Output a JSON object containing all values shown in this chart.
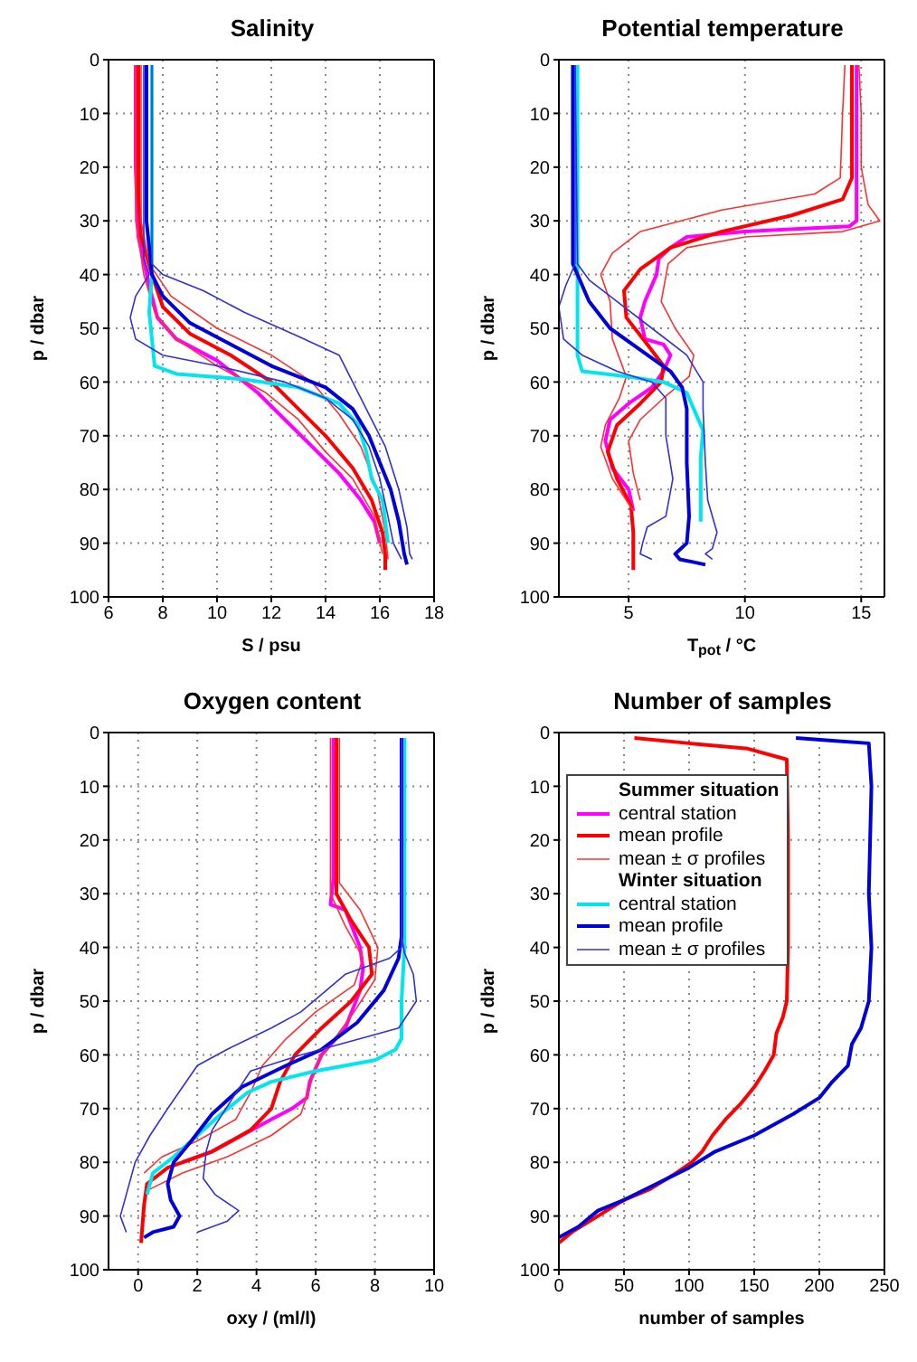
{
  "chart_data": [
    {
      "type": "line",
      "title": "Salinity",
      "xlabel": "S / psu",
      "ylabel": "p / dbar",
      "xlim": [
        6,
        18
      ],
      "xticks": [
        6,
        8,
        10,
        12,
        14,
        16,
        18
      ],
      "ylim": [
        100,
        0
      ],
      "yticks": [
        0,
        10,
        20,
        30,
        40,
        50,
        60,
        70,
        80,
        90,
        100
      ],
      "grid": true,
      "legend": "bottom right",
      "annotations": [
        "Summer situation",
        "Winter situation"
      ],
      "series": [
        {
          "name": "central station",
          "color": "#ff00ff",
          "x": [
            7.0,
            7.0,
            7.1,
            7.5,
            7.8,
            8.5,
            10,
            11.5,
            12.5,
            13.5,
            14.5,
            15.3,
            15.8,
            16.0
          ],
          "values": [
            1,
            20,
            33,
            42,
            48,
            52,
            56,
            62,
            67,
            72,
            77,
            82,
            86,
            90
          ]
        },
        {
          "name": "mean profile",
          "color": "#ff0000",
          "x": [
            7.1,
            7.1,
            7.2,
            7.6,
            8,
            9,
            10.5,
            12,
            13,
            14,
            15,
            15.7,
            16.1,
            16.2,
            16.2
          ],
          "values": [
            1,
            25,
            33,
            40,
            46,
            51,
            55,
            60,
            65,
            70,
            76,
            82,
            88,
            92,
            95
          ]
        },
        {
          "name": "mean ± σ profiles",
          "color": "#ff3030",
          "x": [
            7.2,
            7.2,
            7.5,
            8.3,
            10,
            12,
            13.5,
            14.5,
            15.3,
            15.9,
            16.2,
            16.3
          ],
          "values": [
            1,
            30,
            38,
            44,
            50,
            55,
            60,
            66,
            72,
            80,
            88,
            93
          ]
        },
        {
          "color": "#ff3030",
          "x": [
            7.0,
            7.0,
            7.3,
            7.7,
            8.5,
            10,
            11.8,
            13,
            14,
            15,
            15.8,
            16.1
          ],
          "values": [
            1,
            30,
            40,
            47,
            52,
            57,
            62,
            67,
            73,
            78,
            85,
            92
          ]
        },
        {
          "name": "central station",
          "color": "#00e5ee",
          "x": [
            7.6,
            7.6,
            7.5,
            7.7,
            8.5,
            11,
            13,
            14.5,
            15.2,
            15.5,
            15.7,
            16.1,
            16.2,
            16.3
          ],
          "values": [
            1,
            40,
            47,
            57,
            58.5,
            59.5,
            61,
            64,
            68,
            73,
            78,
            82,
            86,
            90
          ]
        },
        {
          "name": "mean profile",
          "color": "#0000dd",
          "x": [
            7.4,
            7.4,
            7.6,
            8,
            9,
            10.5,
            12,
            14,
            15,
            15.6,
            16,
            16.4,
            16.7,
            16.9,
            17
          ],
          "values": [
            1,
            30,
            40,
            44,
            49,
            53,
            57,
            61,
            65,
            70,
            75,
            80,
            86,
            92,
            94
          ]
        },
        {
          "name": "mean ± σ profiles",
          "color": "#3030dd",
          "x": [
            7.6,
            7.6,
            8,
            9.5,
            11,
            13,
            14.5,
            15,
            15.6,
            16.2,
            16.7,
            17,
            17.1,
            17.2
          ],
          "values": [
            1,
            38,
            40,
            43,
            47,
            51.5,
            55,
            60,
            66,
            72,
            80,
            87,
            92,
            93
          ]
        },
        {
          "color": "#3030dd",
          "x": [
            7.3,
            7.3,
            7.5,
            7.0,
            6.8,
            7.0,
            8,
            10,
            12.5,
            14,
            15,
            15.6,
            16,
            16.3,
            16.5,
            16.8
          ],
          "values": [
            1,
            37,
            40,
            44,
            48,
            52,
            55,
            57,
            60,
            63,
            67,
            72,
            78,
            85,
            90,
            93
          ]
        }
      ]
    },
    {
      "type": "line",
      "title": "Potential temperature",
      "xlabel": "T$_{pot}$ / °C",
      "ylabel": "p / dbar",
      "xlim": [
        2,
        16
      ],
      "xticks": [
        5,
        10,
        15
      ],
      "ylim": [
        100,
        0
      ],
      "yticks": [
        0,
        10,
        20,
        30,
        40,
        50,
        60,
        70,
        80,
        90,
        100
      ],
      "grid": true,
      "series": [
        {
          "color": "#ff00ff",
          "x": [
            14.8,
            14.8,
            14.5,
            10,
            7.5,
            6.8,
            6.3,
            6.2,
            5.7,
            5.5,
            5.7,
            6.5,
            6.8,
            6.5,
            6.0,
            5,
            4.2,
            4.0,
            4.3,
            5,
            5.2
          ],
          "values": [
            1,
            30,
            31,
            32,
            33,
            35,
            37,
            40,
            45,
            48,
            52,
            53,
            55,
            58,
            61,
            64,
            67,
            71,
            76,
            80,
            84
          ]
        },
        {
          "color": "#ff0000",
          "x": [
            14.6,
            14.6,
            14.2,
            12,
            9,
            6.8,
            5.5,
            4.8,
            4.9,
            5.8,
            6.5,
            6.4,
            5.5,
            4.5,
            4.1,
            4.5,
            5.1,
            5.2,
            5.2
          ],
          "values": [
            1,
            22,
            26,
            29,
            32,
            35,
            39,
            43,
            48,
            53,
            57,
            60,
            64,
            68,
            73,
            78,
            83,
            88,
            95
          ]
        },
        {
          "color": "#ff3030",
          "x": [
            14.9,
            15,
            15,
            15.3,
            15.8,
            14.2,
            10,
            7.5,
            6.7,
            6.4,
            7,
            7.8,
            7.6,
            6.5,
            5.5,
            5,
            5.2,
            5.5
          ],
          "values": [
            1,
            10,
            20,
            27,
            30,
            32,
            33,
            35,
            38,
            45,
            50,
            55,
            59,
            63,
            67,
            71,
            77,
            82
          ]
        },
        {
          "color": "#ff3030",
          "x": [
            14.3,
            14.2,
            14.1,
            13,
            9,
            5.5,
            4.3,
            3.8,
            4.2,
            4.3,
            4.9,
            4.6,
            4.0,
            3.8,
            4.3,
            5.2
          ],
          "values": [
            1,
            10,
            22,
            25,
            28,
            32,
            36,
            40,
            45,
            52,
            59,
            63,
            68,
            72,
            78,
            84
          ]
        },
        {
          "color": "#00e5ee",
          "x": [
            2.8,
            2.8,
            2.8,
            3,
            5,
            6.5,
            7.5,
            7.8,
            8.2,
            8.1,
            8.1,
            8.1
          ],
          "values": [
            1,
            40,
            55,
            58,
            59,
            60,
            62,
            65,
            69,
            74,
            80,
            86
          ]
        },
        {
          "color": "#0000dd",
          "x": [
            2.6,
            2.6,
            2.8,
            3.3,
            4.2,
            5.5,
            6.8,
            7.3,
            7.5,
            7.5,
            7.6,
            7.5,
            7.0,
            7.2,
            8.3
          ],
          "values": [
            1,
            38,
            40,
            45,
            50,
            54,
            58,
            61,
            65,
            75,
            85,
            90,
            92,
            93,
            94
          ]
        },
        {
          "color": "#3030dd",
          "x": [
            2.7,
            2.8,
            3.3,
            4.5,
            6,
            7.5,
            8.2,
            8.2,
            8.3,
            8.4,
            8.8,
            8.6,
            8.3,
            8.6
          ],
          "values": [
            1,
            38,
            41,
            45,
            50,
            55,
            60,
            65,
            75,
            82,
            88,
            91,
            92,
            93
          ]
        },
        {
          "color": "#3030dd",
          "x": [
            2.7,
            2.7,
            2.3,
            2.0,
            2.2,
            3,
            4.5,
            6,
            6.6,
            6.6,
            6.9,
            6.6,
            5.8,
            5.6,
            5.5,
            6
          ],
          "values": [
            1,
            38,
            42,
            46,
            52,
            55,
            58,
            60,
            63,
            70,
            78,
            85,
            87,
            90,
            92,
            93
          ]
        }
      ]
    },
    {
      "type": "line",
      "title": "Oxygen content",
      "xlabel": "oxy / (ml/l)",
      "ylabel": "p / dbar",
      "xlim": [
        -1,
        10
      ],
      "xticks": [
        0,
        2,
        4,
        6,
        8,
        10
      ],
      "ylim": [
        100,
        0
      ],
      "yticks": [
        0,
        10,
        20,
        30,
        40,
        50,
        60,
        70,
        80,
        90,
        100
      ],
      "grid": true,
      "series": [
        {
          "color": "#ff00ff",
          "x": [
            6.6,
            6.6,
            6.5,
            7.0,
            7.5,
            7.6,
            7.5,
            7.0,
            6.2,
            5.8,
            5.7,
            5.2,
            4.5,
            3.5,
            2.5,
            1.5
          ],
          "values": [
            1,
            27,
            32,
            33,
            40,
            44,
            48,
            55,
            60,
            65,
            68,
            70,
            72,
            75,
            78,
            80
          ]
        },
        {
          "color": "#ff0000",
          "x": [
            6.7,
            6.7,
            7.2,
            7.8,
            7.9,
            7.2,
            6.2,
            5.3,
            4.8,
            4.5,
            3.8,
            2.5,
            1,
            0.3,
            0.2,
            0.1
          ],
          "values": [
            1,
            30,
            35,
            40,
            45,
            50,
            55,
            60,
            65,
            70,
            74,
            78,
            81,
            84,
            88,
            95
          ]
        },
        {
          "color": "#ff3030",
          "x": [
            6.8,
            6.8,
            7.5,
            8.1,
            8.0,
            7.3,
            6.5,
            6.0,
            5.8,
            5.5,
            4.5,
            3,
            1.5,
            0.4
          ],
          "values": [
            1,
            28,
            33,
            40,
            46,
            52,
            58,
            62,
            66,
            71,
            75,
            79,
            82,
            85
          ]
        },
        {
          "color": "#ff3030",
          "x": [
            6.5,
            6.5,
            7.0,
            7.6,
            7.3,
            6.0,
            5.0,
            4.2,
            3.8,
            3.3,
            2,
            0.8,
            0.2
          ],
          "values": [
            1,
            30,
            36,
            42,
            47,
            52,
            57,
            62,
            67,
            72,
            76,
            79,
            82
          ]
        },
        {
          "color": "#00e5ee",
          "x": [
            9.0,
            9.0,
            8.9,
            8.9,
            8.7,
            8,
            6,
            4.5,
            3.7,
            2.8,
            2.0,
            1.2,
            0.5,
            0.3
          ],
          "values": [
            1,
            40,
            50,
            57,
            59,
            61,
            63,
            65,
            67,
            71,
            75,
            79,
            82,
            86
          ]
        },
        {
          "color": "#0000dd",
          "x": [
            8.9,
            8.9,
            8.8,
            8.3,
            7.4,
            6.2,
            5,
            3.5,
            2.5,
            1.8,
            1.2,
            1.0,
            1.1,
            1.4,
            1.2,
            0.5,
            0.2
          ],
          "values": [
            1,
            38,
            42,
            48,
            54,
            59,
            62,
            66,
            71,
            76,
            80,
            84,
            87,
            90,
            92,
            93,
            94
          ]
        },
        {
          "color": "#3030dd",
          "x": [
            8.9,
            8.9,
            9.0,
            9.3,
            9.4,
            8.8,
            7.5,
            5.5,
            3.8,
            3.2,
            2.5,
            2.3,
            2.2,
            2.6,
            3.4,
            3.0,
            2.0
          ],
          "values": [
            1,
            38,
            41,
            45,
            50,
            55,
            57,
            60,
            63,
            68,
            74,
            78,
            83,
            86,
            89,
            91,
            93
          ]
        },
        {
          "color": "#3030dd",
          "x": [
            8.9,
            8.9,
            8.5,
            7.0,
            5.5,
            4.5,
            3.0,
            2,
            1.0,
            0.4,
            -0.1,
            -0.4,
            -0.6,
            -0.4
          ],
          "values": [
            1,
            40,
            42,
            45,
            52,
            55,
            59,
            62,
            70,
            75,
            80,
            86,
            90,
            93
          ]
        }
      ]
    },
    {
      "type": "line",
      "title": "Number of samples",
      "xlabel": "number of samples",
      "ylabel": "p / dbar",
      "xlim": [
        0,
        250
      ],
      "xticks": [
        0,
        50,
        100,
        150,
        200,
        250
      ],
      "ylim": [
        100,
        0
      ],
      "yticks": [
        0,
        10,
        20,
        30,
        40,
        50,
        60,
        70,
        80,
        90,
        100
      ],
      "grid": true,
      "series": [
        {
          "color": "#ff0000",
          "x": [
            58,
            100,
            145,
            175,
            176,
            176,
            175,
            172,
            167,
            165,
            158,
            150,
            140,
            128,
            118,
            110,
            102,
            90,
            70,
            50,
            30,
            10,
            0
          ],
          "values": [
            1,
            2,
            3,
            5,
            20,
            40,
            50,
            53,
            56,
            60,
            63,
            66,
            69,
            72,
            75,
            78,
            80,
            82,
            85,
            87,
            90,
            93,
            95
          ]
        },
        {
          "color": "#0000dd",
          "x": [
            182,
            210,
            238,
            240,
            238,
            240,
            238,
            232,
            225,
            222,
            210,
            200,
            180,
            150,
            120,
            100,
            75,
            50,
            30,
            15,
            0
          ],
          "values": [
            1,
            1.5,
            2,
            10,
            30,
            40,
            50,
            55,
            58,
            62,
            65,
            68,
            71,
            75,
            78,
            81,
            84,
            87,
            89,
            92,
            94
          ]
        }
      ]
    }
  ]
}
